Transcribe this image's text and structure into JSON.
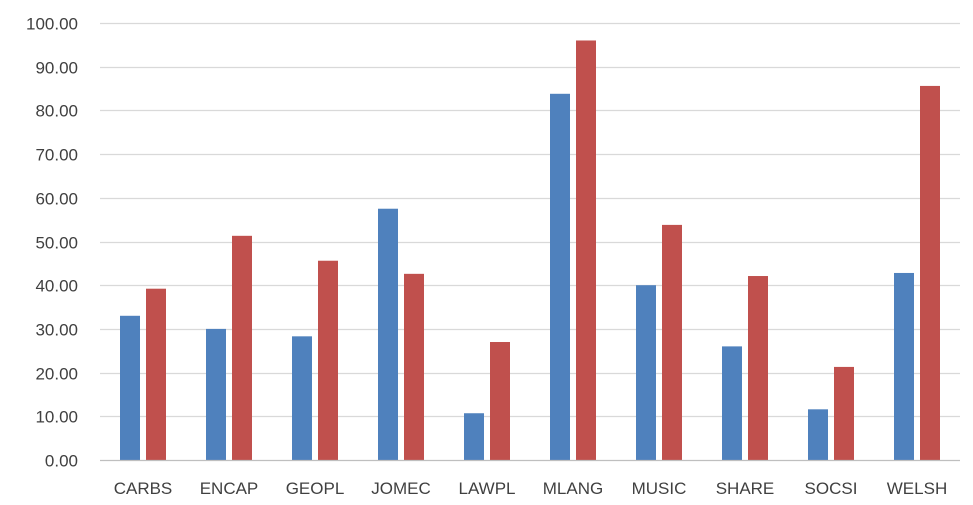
{
  "chart_data": {
    "type": "bar",
    "title": "",
    "xlabel": "",
    "ylabel": "",
    "ylim": [
      0,
      100
    ],
    "y_ticks": [
      "0.00",
      "10.00",
      "20.00",
      "30.00",
      "40.00",
      "50.00",
      "60.00",
      "70.00",
      "80.00",
      "90.00",
      "100.00"
    ],
    "grid": true,
    "legend": "none",
    "categories": [
      "CARBS",
      "ENCAP",
      "GEOPL",
      "JOMEC",
      "LAWPL",
      "MLANG",
      "MUSIC",
      "SHARE",
      "SOCSI",
      "WELSH"
    ],
    "series": [
      {
        "color": "#4f81bd",
        "values": [
          33.0,
          30.0,
          28.3,
          57.5,
          10.7,
          83.8,
          40.0,
          26.0,
          11.6,
          42.8
        ]
      },
      {
        "color": "#c0504d",
        "values": [
          39.2,
          51.3,
          45.6,
          42.6,
          27.0,
          96.0,
          53.8,
          42.1,
          21.3,
          85.6
        ]
      }
    ],
    "colors": {
      "gridline": "#d9d9d9",
      "axis": "#bfbfbf",
      "text": "#404040"
    }
  }
}
